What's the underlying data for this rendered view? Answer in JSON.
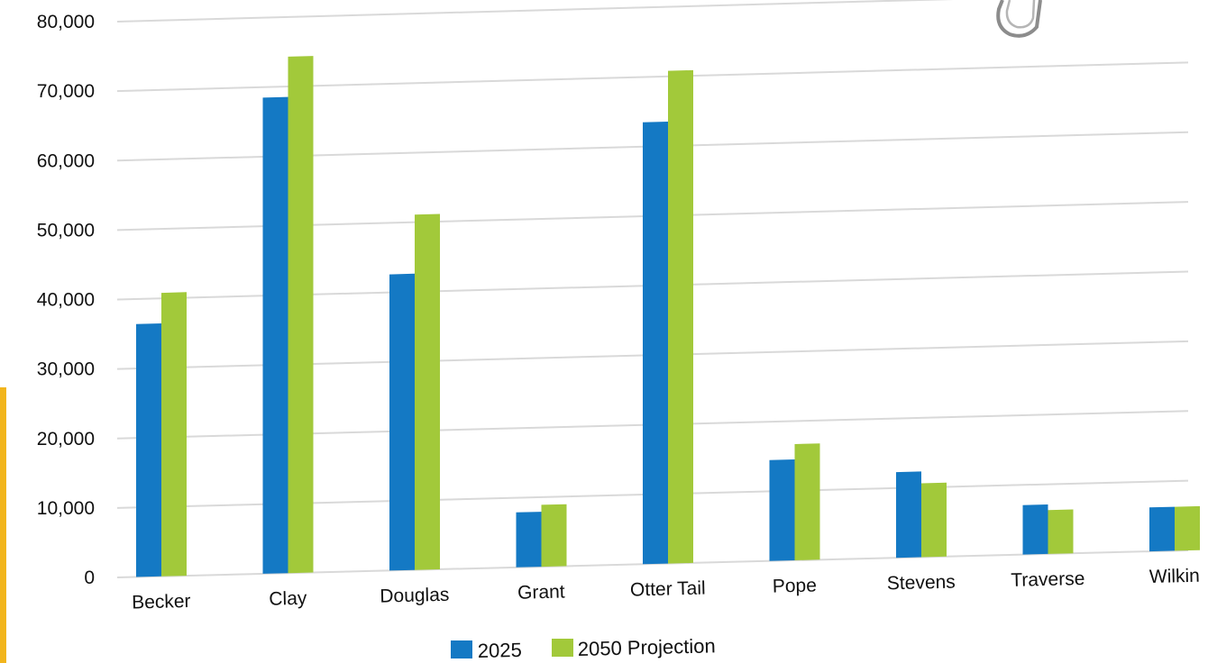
{
  "chart_data": {
    "type": "bar",
    "categories": [
      "Becker",
      "Clay",
      "Douglas",
      "Grant",
      "Otter Tail",
      "Pope",
      "Stevens",
      "Traverse",
      "Wilkin"
    ],
    "series": [
      {
        "name": "2025",
        "color": "#1479c4",
        "values": [
          36400,
          68500,
          42600,
          7900,
          63500,
          14500,
          12300,
          7100,
          6300
        ]
      },
      {
        "name": "2050 Projection",
        "color": "#a2c93a",
        "values": [
          40800,
          74300,
          51100,
          8900,
          70800,
          16700,
          10600,
          6300,
          6300
        ]
      }
    ],
    "y_ticks": [
      "0",
      "10,000",
      "20,000",
      "30,000",
      "40,000",
      "50,000",
      "60,000",
      "70,000",
      "80,000"
    ],
    "ylim": [
      0,
      80000
    ],
    "grid": true,
    "legend": "bottom-center"
  }
}
